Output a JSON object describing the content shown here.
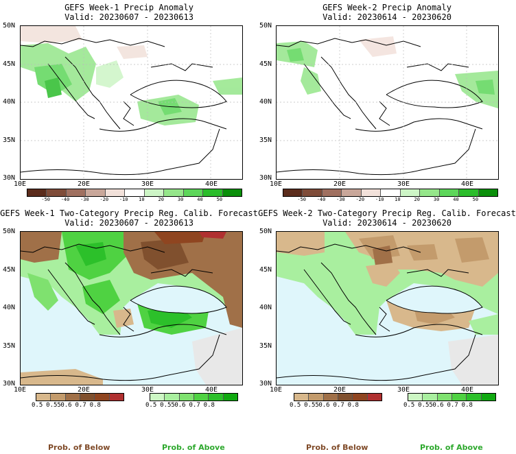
{
  "panels": [
    {
      "title": "GEFS Week-1 Precip Anomaly",
      "subtitle": "Valid: 20230607 - 20230613"
    },
    {
      "title": "GEFS Week-2 Precip Anomaly",
      "subtitle": "Valid: 20230614 - 20230620"
    },
    {
      "title": "GEFS Week-1 Two-Category Precip Reg. Calib. Forecast",
      "subtitle": "Valid: 20230607 - 20230613"
    },
    {
      "title": "GEFS Week-2 Two-Category Precip Reg. Calib. Forecast",
      "subtitle": "Valid: 20230614 - 20230620"
    }
  ],
  "lat_labels": [
    "50N",
    "45N",
    "40N",
    "35N",
    "30N"
  ],
  "lon_labels": [
    "10E",
    "20E",
    "30E",
    "40E"
  ],
  "anomaly_scale": {
    "labels": [
      "-50",
      "-40",
      "-30",
      "-20",
      "-10",
      "10",
      "20",
      "30",
      "40",
      "50"
    ],
    "colors": [
      "#5b2c1c",
      "#7f4c39",
      "#a07060",
      "#c9a79a",
      "#f2e1da",
      "#ffffff",
      "#cdf5c6",
      "#95e68a",
      "#5dd65a",
      "#2bbd2b",
      "#0a8f0a"
    ]
  },
  "prob_below_scale": {
    "labels": [
      "0.5",
      "0.55",
      "0.6",
      "0.7",
      "0.8"
    ],
    "colors": [
      "#d8b88c",
      "#c39b6c",
      "#a07048",
      "#80502e",
      "#8f4520",
      "#b03030"
    ]
  },
  "prob_above_scale": {
    "labels": [
      "0.5",
      "0.55",
      "0.6",
      "0.7",
      "0.8"
    ],
    "colors": [
      "#cdf7c4",
      "#a9ef9f",
      "#7fe16f",
      "#4fd242",
      "#2cc02a",
      "#10a910"
    ]
  },
  "footer": {
    "below_label_left": "Prob. of Below",
    "above_label_left": "Prob. of Above",
    "below_label_right": "Prob. of Below",
    "above_label_right": "Prob. of Above"
  },
  "colors": {
    "sea_prob": "#dff6fb",
    "masked_land": "#e8e8e8",
    "below_text": "#7f4a28",
    "above_text": "#2da82d"
  }
}
